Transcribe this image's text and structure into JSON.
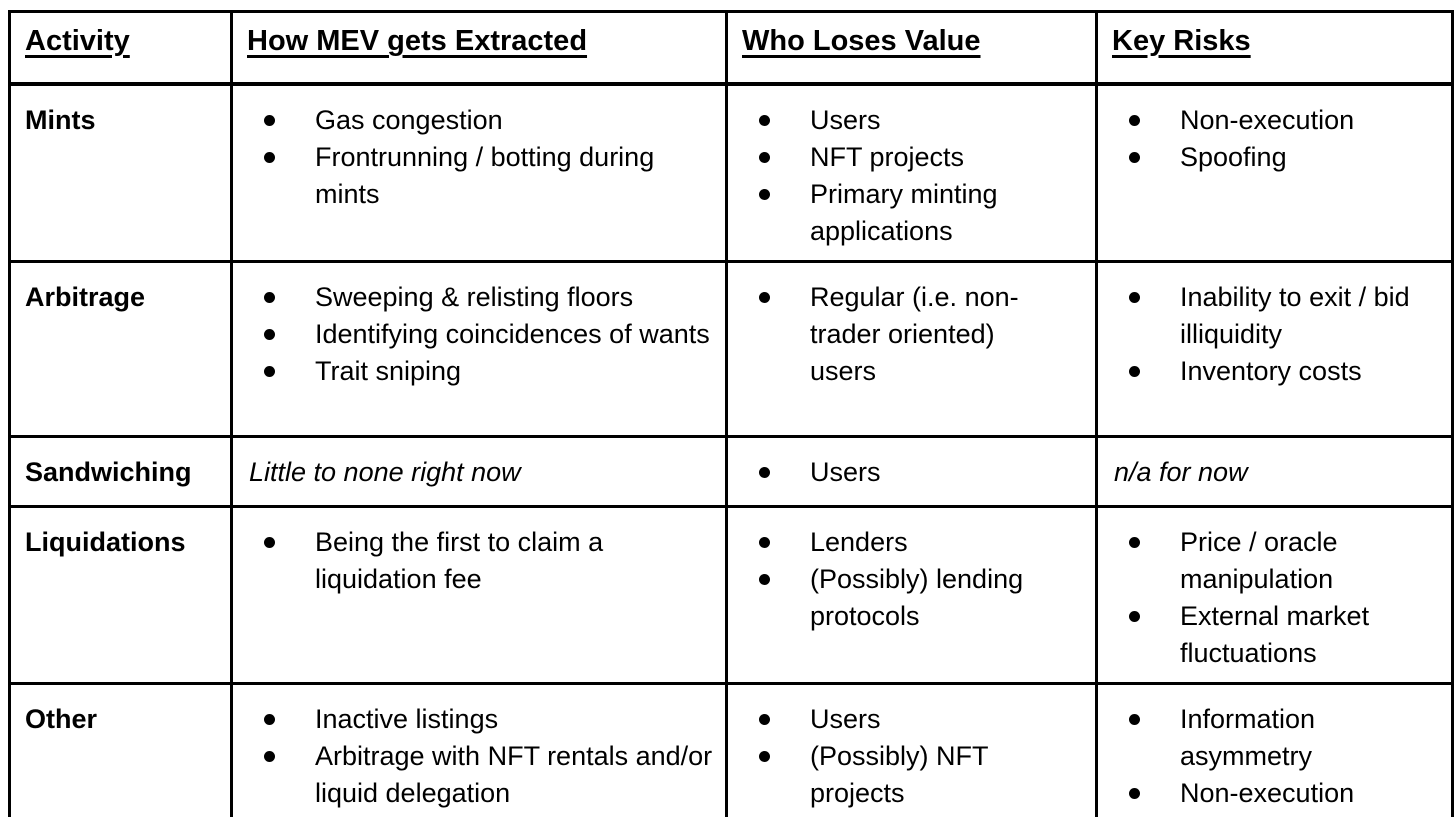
{
  "page": {
    "background_color": "#ffffff",
    "border_color": "#000000",
    "text_color": "#000000"
  },
  "table": {
    "columns": [
      {
        "id": "activity",
        "label": "Activity"
      },
      {
        "id": "extraction",
        "label": "How MEV gets Extracted"
      },
      {
        "id": "losers",
        "label": "Who Loses Value"
      },
      {
        "id": "risks",
        "label": "Key Risks"
      }
    ],
    "rows": [
      {
        "activity": "Mints",
        "extraction": {
          "style": "bullets",
          "items": [
            "Gas congestion",
            "Frontrunning / botting during mints"
          ]
        },
        "losers": {
          "style": "bullets",
          "items": [
            "Users",
            "NFT projects",
            "Primary minting applications"
          ]
        },
        "risks": {
          "style": "bullets",
          "items": [
            "Non-execution",
            "Spoofing"
          ]
        }
      },
      {
        "activity": "Arbitrage",
        "extraction": {
          "style": "bullets",
          "items": [
            "Sweeping & relisting floors",
            "Identifying coincidences of wants",
            "Trait sniping"
          ]
        },
        "losers": {
          "style": "bullets",
          "items": [
            "Regular (i.e. non-trader oriented) users"
          ]
        },
        "risks": {
          "style": "bullets",
          "items": [
            "Inability to exit / bid illiquidity",
            "Inventory costs"
          ]
        }
      },
      {
        "activity": "Sandwiching",
        "extraction": {
          "style": "italic",
          "text": "Little to none right now"
        },
        "losers": {
          "style": "bullets",
          "items": [
            "Users"
          ]
        },
        "risks": {
          "style": "italic",
          "text": "n/a for now"
        }
      },
      {
        "activity": "Liquidations",
        "extraction": {
          "style": "bullets",
          "items": [
            "Being the first to claim a liquidation fee"
          ]
        },
        "losers": {
          "style": "bullets",
          "items": [
            "Lenders",
            "(Possibly) lending protocols"
          ]
        },
        "risks": {
          "style": "bullets",
          "items": [
            "Price / oracle manipulation",
            "External market fluctuations"
          ]
        }
      },
      {
        "activity": "Other",
        "extraction": {
          "style": "bullets",
          "items": [
            "Inactive listings",
            "Arbitrage with NFT rentals and/or liquid delegation"
          ]
        },
        "losers": {
          "style": "bullets",
          "items": [
            "Users",
            "(Possibly) NFT projects"
          ]
        },
        "risks": {
          "style": "bullets",
          "items": [
            "Information asymmetry",
            "Non-execution"
          ]
        }
      }
    ]
  }
}
